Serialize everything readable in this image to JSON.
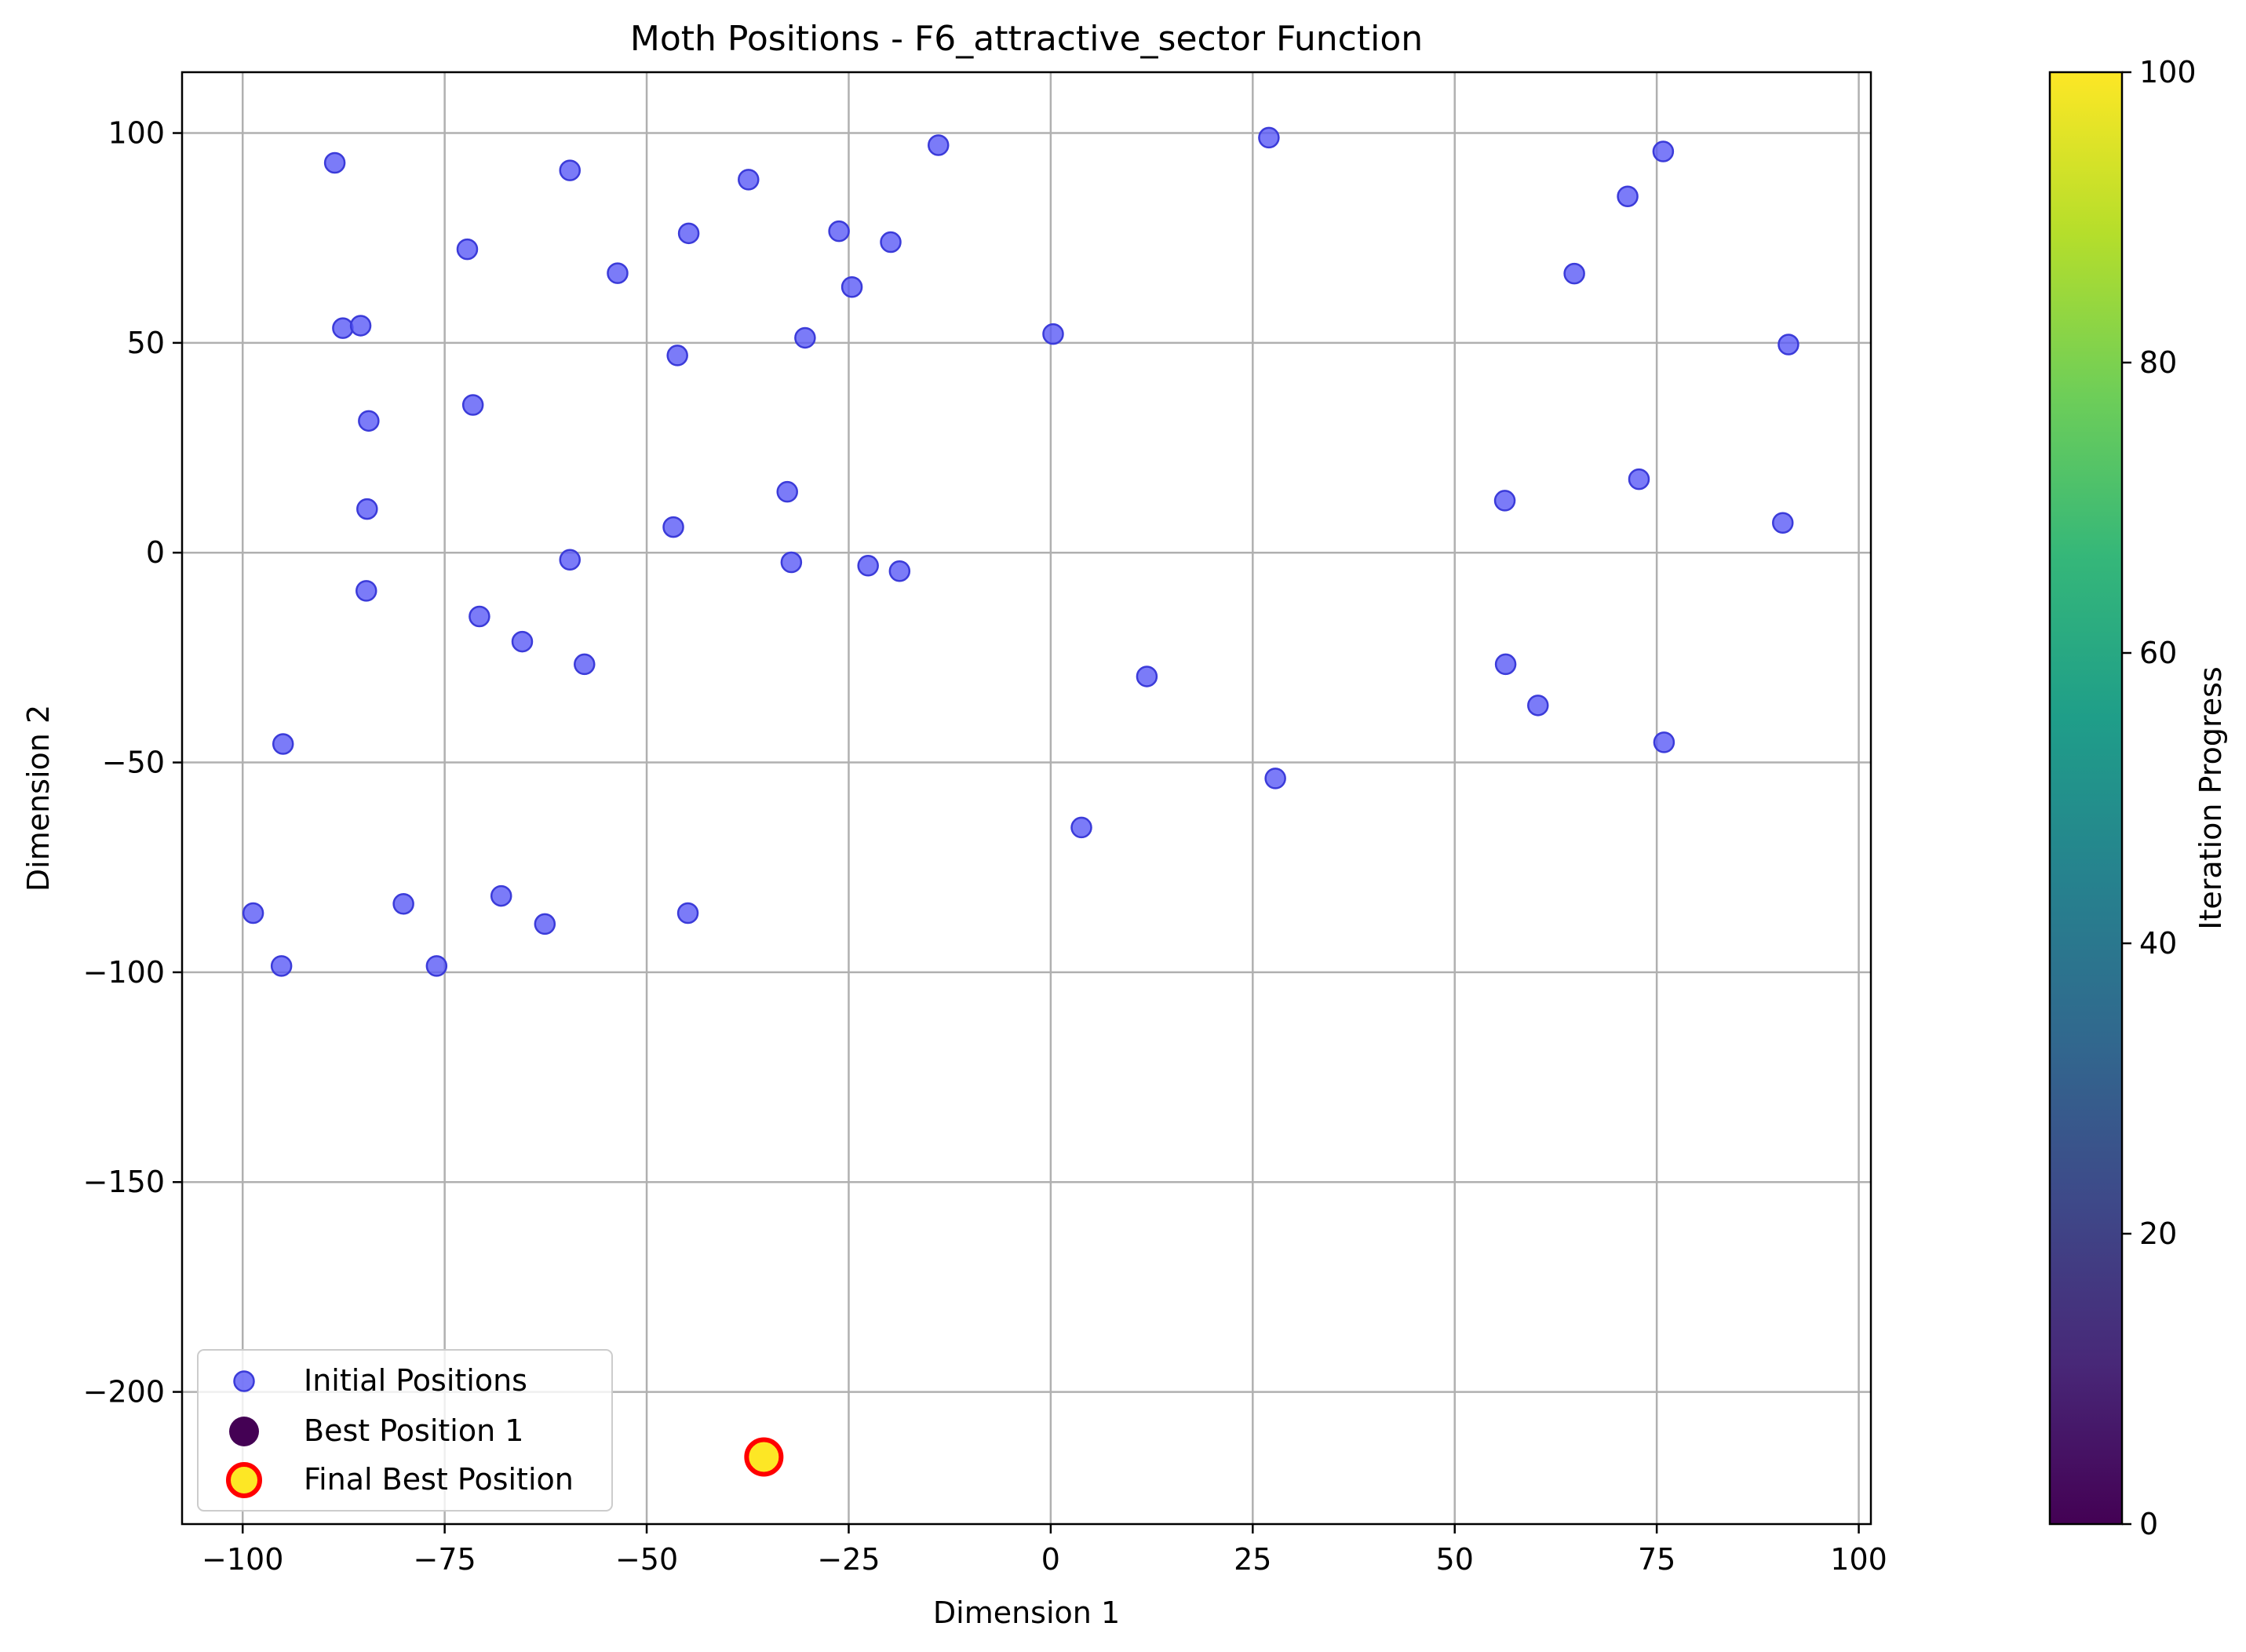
{
  "chart_data": {
    "type": "scatter",
    "title": "Moth Positions - F6_attractive_sector Function",
    "xlabel": "Dimension 1",
    "ylabel": "Dimension 2",
    "xlim": [
      -107.5,
      101.5
    ],
    "ylim": [
      -231.5,
      114.5
    ],
    "xticks": [
      -100,
      -75,
      -50,
      -25,
      0,
      25,
      50,
      75,
      100
    ],
    "xtick_labels": [
      "−100",
      "−75",
      "−50",
      "−25",
      "0",
      "25",
      "50",
      "75",
      "100"
    ],
    "yticks": [
      100,
      50,
      0,
      -50,
      -100,
      -150,
      -200
    ],
    "ytick_labels": [
      "100",
      "50",
      "0",
      "−50",
      "−100",
      "−150",
      "−200"
    ],
    "grid": true,
    "legend_position": "lower-left",
    "series": [
      {
        "name": "Initial Positions",
        "color": "#5a5af6",
        "edge_color": "#3b3bd9",
        "points": [
          [
            -88.6,
            92.9
          ],
          [
            -59.5,
            91.1
          ],
          [
            -37.4,
            88.9
          ],
          [
            -13.9,
            97.1
          ],
          [
            27.0,
            98.9
          ],
          [
            75.8,
            95.6
          ],
          [
            71.4,
            84.9
          ],
          [
            -72.2,
            72.3
          ],
          [
            -44.8,
            76.1
          ],
          [
            -26.2,
            76.6
          ],
          [
            -19.8,
            74.0
          ],
          [
            -53.6,
            66.6
          ],
          [
            -24.6,
            63.3
          ],
          [
            -87.6,
            53.5
          ],
          [
            -85.4,
            54.1
          ],
          [
            -46.2,
            47.0
          ],
          [
            -30.4,
            51.2
          ],
          [
            0.3,
            52.1
          ],
          [
            91.3,
            49.6
          ],
          [
            64.8,
            66.5
          ],
          [
            -84.4,
            31.4
          ],
          [
            -71.5,
            35.2
          ],
          [
            -84.6,
            10.4
          ],
          [
            -46.7,
            6.1
          ],
          [
            -32.6,
            14.5
          ],
          [
            -59.5,
            -1.7
          ],
          [
            -32.1,
            -2.3
          ],
          [
            -22.6,
            -3.1
          ],
          [
            -18.7,
            -4.4
          ],
          [
            -84.7,
            -9.1
          ],
          [
            56.2,
            12.4
          ],
          [
            72.8,
            17.5
          ],
          [
            90.6,
            7.1
          ],
          [
            -70.7,
            -15.2
          ],
          [
            -65.4,
            -21.2
          ],
          [
            -57.7,
            -26.6
          ],
          [
            11.9,
            -29.5
          ],
          [
            56.3,
            -26.6
          ],
          [
            60.3,
            -36.4
          ],
          [
            75.9,
            -45.2
          ],
          [
            -95.0,
            -45.6
          ],
          [
            27.8,
            -53.8
          ],
          [
            3.8,
            -65.5
          ],
          [
            -98.7,
            -85.9
          ],
          [
            -80.1,
            -83.7
          ],
          [
            -68.0,
            -81.8
          ],
          [
            -62.6,
            -88.5
          ],
          [
            -44.9,
            -85.9
          ],
          [
            -95.2,
            -98.5
          ],
          [
            -76.0,
            -98.5
          ]
        ]
      },
      {
        "name": "Best Position 1",
        "color": "#440154",
        "points": [
          [
            -35.5,
            -215.5
          ]
        ]
      },
      {
        "name": "Final Best Position",
        "color": "#fde725",
        "edge_color": "#ff0000",
        "points": [
          [
            -35.5,
            -215.5
          ]
        ]
      }
    ],
    "colorbar": {
      "label": "Iteration Progress",
      "colormap": "viridis",
      "range": [
        0,
        100
      ],
      "ticks": [
        0,
        20,
        40,
        60,
        80,
        100
      ],
      "colors": [
        "#440154",
        "#482878",
        "#3e4989",
        "#31688e",
        "#26828e",
        "#1f9e89",
        "#35b779",
        "#6ece58",
        "#b5de2b",
        "#fde725"
      ]
    }
  }
}
